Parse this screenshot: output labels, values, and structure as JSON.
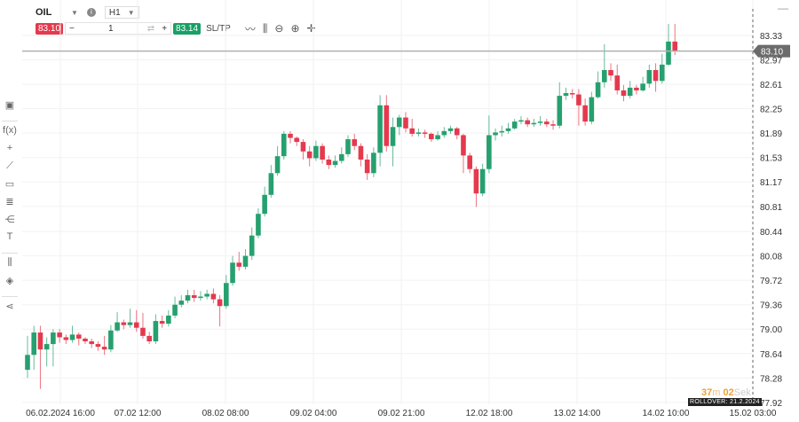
{
  "toolbar": {
    "symbol": "OIL",
    "timeframe": "H1",
    "sell_price": "83.10",
    "quantity": "1",
    "buy_price": "83.14",
    "sltp_label": "SL/TP"
  },
  "timer": {
    "minutes": "37",
    "m_unit": "m",
    "seconds": "02",
    "s_unit": "Sek"
  },
  "rollover": "ROLLOVER: 21.2.2024",
  "colors": {
    "up": "#26a06f",
    "down": "#e5394d",
    "price_line": "#b0b0b0",
    "price_label_bg": "#6b6b6b"
  },
  "chart_data": {
    "type": "candlestick",
    "current_price": 83.1,
    "current_price_label": "83.10",
    "ylim": [
      77.92,
      83.58
    ],
    "y_ticks": [
      "83.33",
      "82.97",
      "82.61",
      "82.25",
      "81.89",
      "81.53",
      "81.17",
      "80.81",
      "80.44",
      "80.08",
      "79.72",
      "79.36",
      "79.00",
      "78.64",
      "78.28",
      "77.92"
    ],
    "x_ticks": [
      "06.02.2024 16:00",
      "07.02 12:00",
      "08.02 08:00",
      "09.02 04:00",
      "09.02 21:00",
      "12.02 18:00",
      "13.02 14:00",
      "14.02 10:00",
      "15.02 03:00"
    ],
    "grid": true,
    "open": [
      78.4,
      78.62,
      78.95,
      78.7,
      78.78,
      78.95,
      78.88,
      78.84,
      78.92,
      78.86,
      78.82,
      78.78,
      78.74,
      78.7,
      78.98,
      79.1,
      79.06,
      79.1,
      79.02,
      78.9,
      78.82,
      79.12,
      79.08,
      79.2,
      79.36,
      79.42,
      79.5,
      79.46,
      79.48,
      79.52,
      79.44,
      79.34,
      79.68,
      79.98,
      79.92,
      80.08,
      80.38,
      80.7,
      80.98,
      81.3,
      81.55,
      81.88,
      81.82,
      81.76,
      81.62,
      81.52,
      81.7,
      81.5,
      81.42,
      81.48,
      81.58,
      81.8,
      81.7,
      81.5,
      81.3,
      81.6,
      82.3,
      81.7,
      81.98,
      82.12,
      81.96,
      81.88,
      81.9,
      81.88,
      81.8,
      81.86,
      81.92,
      81.96,
      81.86,
      81.56,
      81.36,
      81.0,
      81.36,
      81.86,
      81.9,
      81.92,
      81.96,
      82.06,
      82.08,
      82.02,
      82.04,
      82.06,
      82.02,
      82.0,
      82.44,
      82.48,
      82.46,
      82.3,
      82.06,
      82.42,
      82.64,
      82.82,
      82.74,
      82.52,
      82.44,
      82.56,
      82.52,
      82.62,
      82.82,
      82.66,
      82.9,
      83.24
    ],
    "high": [
      78.9,
      79.05,
      79.05,
      78.88,
      79.0,
      79.0,
      78.92,
      79.05,
      78.95,
      78.88,
      78.86,
      78.82,
      78.9,
      79.06,
      79.25,
      79.14,
      79.3,
      79.28,
      79.24,
      78.96,
      79.22,
      79.2,
      79.28,
      79.48,
      79.5,
      79.58,
      79.58,
      79.56,
      79.58,
      79.6,
      79.5,
      79.8,
      80.08,
      80.14,
      80.18,
      80.5,
      80.78,
      81.1,
      81.42,
      81.7,
      81.92,
      81.92,
      81.84,
      81.8,
      81.7,
      81.78,
      81.74,
      81.56,
      81.56,
      81.68,
      81.86,
      81.88,
      81.74,
      81.58,
      81.68,
      82.45,
      82.45,
      82.12,
      82.16,
      82.2,
      82.1,
      81.96,
      81.94,
      81.9,
      81.92,
      81.98,
      82.0,
      81.98,
      81.88,
      81.6,
      81.4,
      81.44,
      82.15,
      81.96,
      82.0,
      82.04,
      82.1,
      82.14,
      82.12,
      82.1,
      82.14,
      82.1,
      82.08,
      82.64,
      82.56,
      82.54,
      82.54,
      82.4,
      82.5,
      82.8,
      83.2,
      82.92,
      82.9,
      82.6,
      82.66,
      82.6,
      82.72,
      82.9,
      82.92,
      83.06,
      83.5,
      83.5
    ],
    "low": [
      78.28,
      78.4,
      78.12,
      78.45,
      78.45,
      78.8,
      78.78,
      78.8,
      78.76,
      78.78,
      78.72,
      78.68,
      78.62,
      78.66,
      78.96,
      79.0,
      79.02,
      78.96,
      78.86,
      78.78,
      78.78,
      79.02,
      79.04,
      79.16,
      79.32,
      79.38,
      79.4,
      79.42,
      79.44,
      79.38,
      79.04,
      79.3,
      79.64,
      79.86,
      79.88,
      80.02,
      80.34,
      80.66,
      80.94,
      81.26,
      81.5,
      81.74,
      81.7,
      81.5,
      81.4,
      81.48,
      81.44,
      81.36,
      81.38,
      81.44,
      81.54,
      81.64,
      81.4,
      81.2,
      81.24,
      81.4,
      81.62,
      81.4,
      81.86,
      81.9,
      81.84,
      81.84,
      81.82,
      81.76,
      81.78,
      81.82,
      81.88,
      81.8,
      81.3,
      81.3,
      80.8,
      80.96,
      81.3,
      81.78,
      81.84,
      81.88,
      81.94,
      82.02,
      81.98,
      81.98,
      82.0,
      81.98,
      81.94,
      81.96,
      82.38,
      82.4,
      82.0,
      82.0,
      82.02,
      82.4,
      82.56,
      82.66,
      82.46,
      82.36,
      82.4,
      82.46,
      82.5,
      82.56,
      82.5,
      82.62,
      82.88,
      83.04
    ],
    "close": [
      78.62,
      78.95,
      78.7,
      78.78,
      78.95,
      78.88,
      78.84,
      78.92,
      78.86,
      78.82,
      78.78,
      78.74,
      78.7,
      78.98,
      79.1,
      79.06,
      79.1,
      79.02,
      78.9,
      78.82,
      79.12,
      79.08,
      79.2,
      79.36,
      79.42,
      79.5,
      79.46,
      79.48,
      79.52,
      79.44,
      79.34,
      79.68,
      79.98,
      79.92,
      80.08,
      80.38,
      80.7,
      80.98,
      81.3,
      81.55,
      81.88,
      81.82,
      81.76,
      81.62,
      81.52,
      81.7,
      81.5,
      81.42,
      81.48,
      81.58,
      81.8,
      81.7,
      81.5,
      81.3,
      81.6,
      82.3,
      81.7,
      81.98,
      82.12,
      81.96,
      81.88,
      81.9,
      81.88,
      81.8,
      81.86,
      81.92,
      81.96,
      81.86,
      81.56,
      81.36,
      81.0,
      81.36,
      81.86,
      81.9,
      81.92,
      81.96,
      82.06,
      82.08,
      82.02,
      82.04,
      82.06,
      82.02,
      82.0,
      82.44,
      82.48,
      82.46,
      82.3,
      82.06,
      82.42,
      82.64,
      82.82,
      82.74,
      82.52,
      82.44,
      82.56,
      82.52,
      82.62,
      82.82,
      82.66,
      82.9,
      83.24,
      83.1
    ]
  }
}
